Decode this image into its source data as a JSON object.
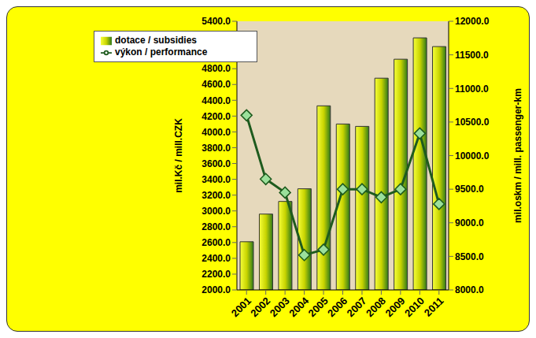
{
  "chart_data": {
    "type": "bar",
    "categories": [
      "2001",
      "2002",
      "2003",
      "2004",
      "2005",
      "2006",
      "2007",
      "2008",
      "2009",
      "2010",
      "2011"
    ],
    "series": [
      {
        "name": "dotace / subsidies",
        "type": "bar",
        "color": "#c8d400",
        "values": [
          2610,
          2960,
          3120,
          3280,
          4330,
          4100,
          4070,
          4680,
          4920,
          5190,
          5080
        ]
      },
      {
        "name": "výkon / performance",
        "type": "line",
        "axis": "y2",
        "color": "#1e5b1e",
        "marker": "diamond",
        "values": [
          10600,
          9650,
          9450,
          8520,
          8600,
          9500,
          9500,
          9380,
          9500,
          10330,
          9280
        ]
      }
    ],
    "y_label": "mil.Kč / mill.CZK",
    "y2_label": "mil.oskm / mill. passenger-km",
    "ylim": [
      2000,
      5400
    ],
    "yticks": [
      {
        "value": 2000,
        "label": "2000.0"
      },
      {
        "value": 2200,
        "label": "2200.0"
      },
      {
        "value": 2400,
        "label": "2400.0"
      },
      {
        "value": 2600,
        "label": "2600.0"
      },
      {
        "value": 2800,
        "label": "2800.0"
      },
      {
        "value": 3000,
        "label": "3000.0"
      },
      {
        "value": 3200,
        "label": "3200.0"
      },
      {
        "value": 3400,
        "label": "3400.0"
      },
      {
        "value": 3600,
        "label": "3600.0"
      },
      {
        "value": 3800,
        "label": "3800.0"
      },
      {
        "value": 4000,
        "label": "4000.0"
      },
      {
        "value": 4200,
        "label": "4200.0"
      },
      {
        "value": 4400,
        "label": "4400.0"
      },
      {
        "value": 4600,
        "label": "4600.0"
      },
      {
        "value": 4800,
        "label": "4800.0"
      },
      {
        "value": 5000,
        "label": "5000.0"
      },
      {
        "value": 5200,
        "label": "5200.0"
      },
      {
        "value": 5400,
        "label": "5400.0"
      }
    ],
    "y2lim": [
      8000,
      12000
    ],
    "y2ticks": [
      {
        "value": 8000,
        "label": "8000.0"
      },
      {
        "value": 8500,
        "label": "8500.0"
      },
      {
        "value": 9000,
        "label": "9000.0"
      },
      {
        "value": 9500,
        "label": "9500.0"
      },
      {
        "value": 10000,
        "label": "10000.0"
      },
      {
        "value": 10500,
        "label": "10500.0"
      },
      {
        "value": 11000,
        "label": "11000.0"
      },
      {
        "value": 11500,
        "label": "11500.0"
      },
      {
        "value": 12000,
        "label": "12000.0"
      }
    ],
    "grid": false,
    "legend": "top-left"
  }
}
